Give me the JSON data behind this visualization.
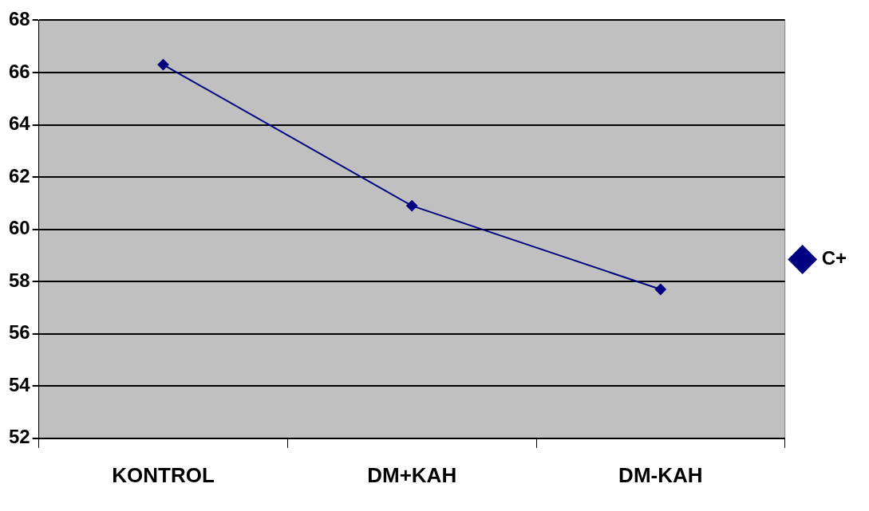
{
  "chart_data": {
    "type": "line",
    "categories": [
      "KONTROL",
      "DM+KAH",
      "DM-KAH"
    ],
    "series": [
      {
        "name": "C+",
        "color": "#000080",
        "values": [
          66.3,
          60.9,
          57.7
        ]
      }
    ],
    "ylim": [
      52,
      68
    ],
    "yticks": [
      52,
      54,
      56,
      58,
      60,
      62,
      64,
      66,
      68
    ],
    "grid": "y",
    "legend": "right",
    "marker": "diamond",
    "line_style": "solid"
  }
}
